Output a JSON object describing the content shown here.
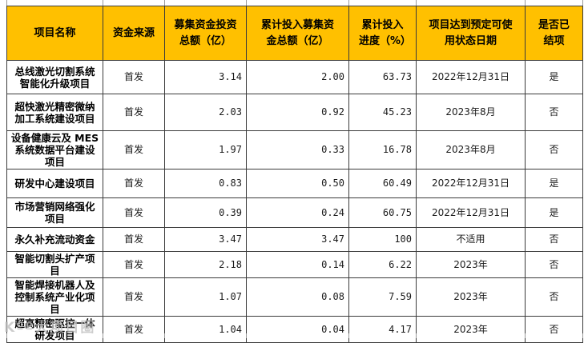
{
  "colors": {
    "header_bg": "#FFC000",
    "border": "#3b3b3b",
    "text": "#1a1a1a",
    "watermark": "#bdbdbd"
  },
  "table": {
    "headers": [
      "项目名称",
      "资金来源",
      "募集资金投资总额（亿）",
      "累计投入募集资金总额（亿）",
      "累计投入进度（%）",
      "项目达到预定可使用状态日期",
      "是否已结项"
    ],
    "rows": [
      [
        "总线激光切割系统智能化升级项目",
        "首发",
        "3.14",
        "2.00",
        "63.73",
        "2022年12月31日",
        "是"
      ],
      [
        "超快激光精密微纳加工系统建设项目",
        "首发",
        "2.03",
        "0.92",
        "45.23",
        "2023年8月",
        "否"
      ],
      [
        "设备健康云及 MES系统数据平台建设项目",
        "首发",
        "1.97",
        "0.33",
        "16.78",
        "2023年8月",
        "否"
      ],
      [
        "研发中心建设项目",
        "首发",
        "0.83",
        "0.50",
        "60.49",
        "2022年12月31日",
        "是"
      ],
      [
        "市场营销网络强化项目",
        "首发",
        "0.39",
        "0.24",
        "60.75",
        "2022年12月31日",
        "是"
      ],
      [
        "永久补充流动资金",
        "首发",
        "3.47",
        "3.47",
        "100",
        "不适用",
        "否"
      ],
      [
        "智能切割头扩产项目",
        "首发",
        "2.18",
        "0.14",
        "6.22",
        "2023年",
        "否"
      ],
      [
        "智能焊接机器人及控制系统产业化项目",
        "首发",
        "1.07",
        "0.08",
        "7.59",
        "2023年",
        "否"
      ],
      [
        "超高精密驱控一体研发项目",
        "首发",
        "1.04",
        "0.04",
        "4.17",
        "2023年",
        "否"
      ]
    ]
  },
  "watermark": {
    "text": "Kºº大项目圈"
  }
}
